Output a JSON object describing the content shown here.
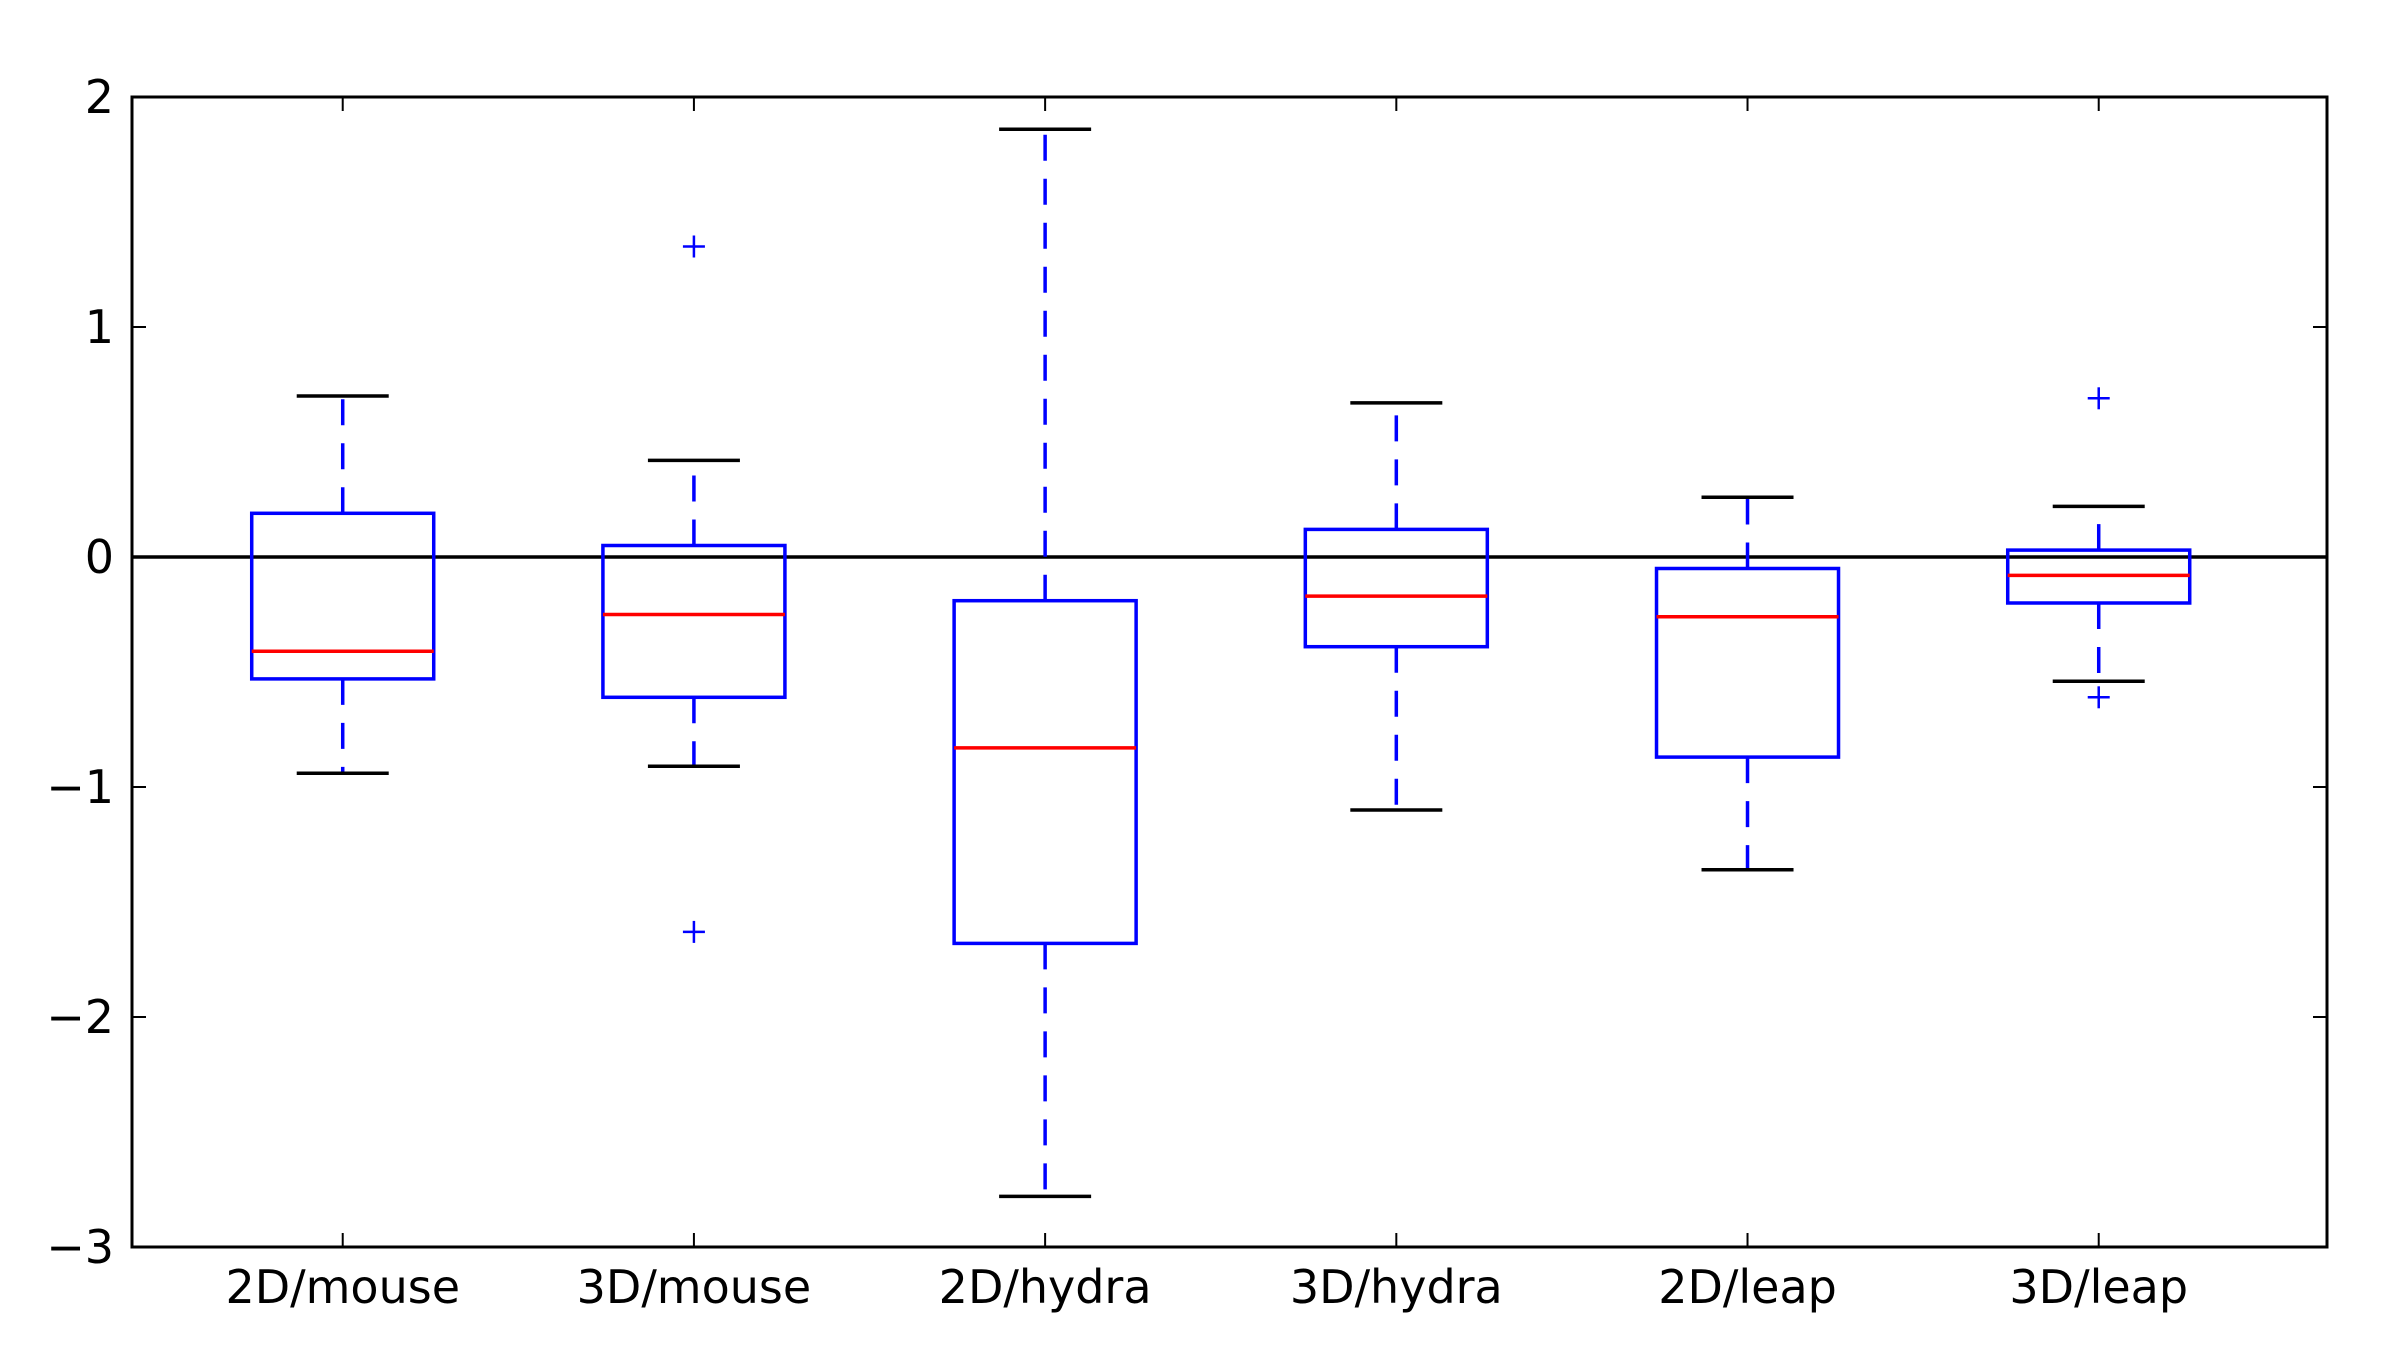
{
  "chart_data": {
    "type": "box",
    "title": "",
    "xlabel": "",
    "ylabel": "",
    "ylim": [
      -3,
      2
    ],
    "yticks": [
      2,
      1,
      0,
      -1,
      -2,
      -3
    ],
    "ytick_labels": [
      "2",
      "1",
      "0",
      "−1",
      "−2",
      "−3"
    ],
    "reference_line_y": 0,
    "grid": false,
    "legend": "none",
    "colors": {
      "box": "#0000ff",
      "median": "#ff0000",
      "cap": "#000000",
      "flier": "#0000ff",
      "reference": "#000000"
    },
    "categories": [
      "2D/mouse",
      "3D/mouse",
      "2D/hydra",
      "3D/hydra",
      "2D/leap",
      "3D/leap"
    ],
    "boxes": [
      {
        "category": "2D/mouse",
        "whisker_low": -0.94,
        "q1": -0.53,
        "median": -0.41,
        "q3": 0.19,
        "whisker_high": 0.7,
        "fliers": []
      },
      {
        "category": "3D/mouse",
        "whisker_low": -0.91,
        "q1": -0.61,
        "median": -0.25,
        "q3": 0.05,
        "whisker_high": 0.42,
        "fliers": [
          1.35,
          -1.63
        ]
      },
      {
        "category": "2D/hydra",
        "whisker_low": -2.78,
        "q1": -1.68,
        "median": -0.83,
        "q3": -0.19,
        "whisker_high": 1.86,
        "fliers": []
      },
      {
        "category": "3D/hydra",
        "whisker_low": -1.1,
        "q1": -0.39,
        "median": -0.17,
        "q3": 0.12,
        "whisker_high": 0.67,
        "fliers": []
      },
      {
        "category": "2D/leap",
        "whisker_low": -1.36,
        "q1": -0.87,
        "median": -0.26,
        "q3": -0.05,
        "whisker_high": 0.26,
        "fliers": []
      },
      {
        "category": "3D/leap",
        "whisker_low": -0.54,
        "q1": -0.2,
        "median": -0.08,
        "q3": 0.03,
        "whisker_high": 0.22,
        "fliers": [
          0.69,
          -0.61
        ]
      }
    ]
  }
}
